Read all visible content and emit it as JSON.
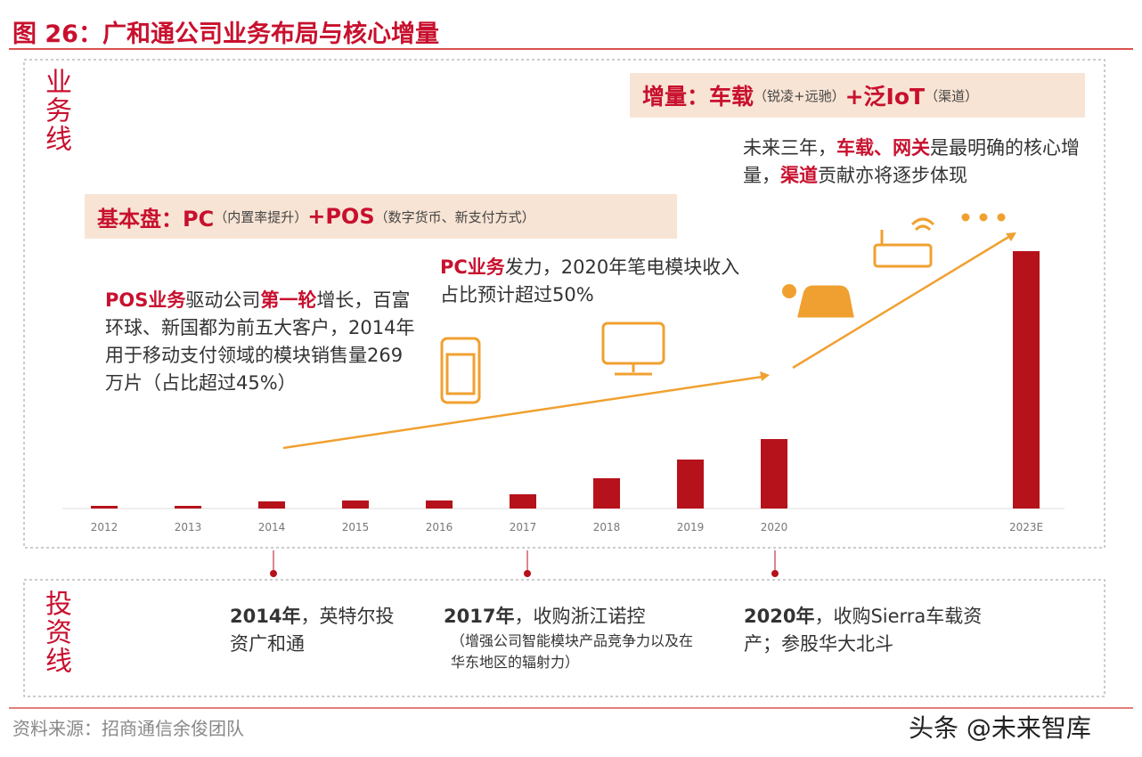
{
  "header": {
    "title": "图 26：广和通公司业务布局与核心增量"
  },
  "business_line": {
    "label": "业务线",
    "increment": [
      "增量：车载",
      "（锐凌+远驰）",
      "+泛IoT",
      "（渠道）"
    ],
    "future_note": [
      "未来三年，",
      "车载、网关",
      "是最明确的核心增量，",
      "渠道",
      "贡献亦将逐步体现"
    ],
    "base": [
      "基本盘：PC",
      "（内置率提升）",
      "+POS",
      "（数字货币、新支付方式）"
    ],
    "pos_note": [
      "POS业务",
      "驱动公司",
      "第一轮",
      "增长，百富环球、新国都为前五大客户，2014年用于移动支付领域的模块销售量269万片（占比超过45%）"
    ],
    "pc_note": [
      "PC业务",
      "发力，2020年笔电模块收入占比预计超过50%"
    ]
  },
  "chart_data": {
    "type": "bar",
    "color": "#b5121b",
    "categories": [
      "2012",
      "2013",
      "2014",
      "2015",
      "2016",
      "2017",
      "2018",
      "2019",
      "2020",
      "2023E"
    ],
    "values": [
      3,
      3,
      8,
      9,
      9,
      16,
      34,
      55,
      78,
      289
    ]
  },
  "investment_line": {
    "label": "投资线",
    "events": [
      {
        "year": "2014年",
        "text": "，英特尔投资广和通"
      },
      {
        "year": "2017年",
        "text": "，收购浙江诺控",
        "detail": "（增强公司智能模块产品竞争力以及在华东地区的辐射力）"
      },
      {
        "year": "2020年",
        "text": "，收购Sierra车载资产；参股华大北斗"
      }
    ]
  },
  "footer": {
    "source": "资料来源：招商通信余俊团队",
    "watermark": "头条 @未来智库"
  }
}
